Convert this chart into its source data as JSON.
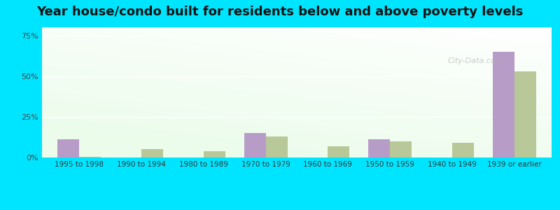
{
  "title": "Year house/condo built for residents below and above poverty levels",
  "categories": [
    "1995 to 1998",
    "1990 to 1994",
    "1980 to 1989",
    "1970 to 1979",
    "1960 to 1969",
    "1950 to 1959",
    "1940 to 1949",
    "1939 or earlier"
  ],
  "below_poverty": [
    11,
    0,
    0,
    15,
    0,
    11,
    0,
    65
  ],
  "above_poverty": [
    0.5,
    5,
    4,
    13,
    7,
    10,
    9,
    53
  ],
  "below_color": "#b89cc8",
  "above_color": "#b8c898",
  "bar_width": 0.35,
  "ylim": [
    0,
    80
  ],
  "yticks": [
    0,
    25,
    50,
    75
  ],
  "ytick_labels": [
    "0%",
    "25%",
    "50%",
    "75%"
  ],
  "outer_bg": "#00e5ff",
  "title_fontsize": 13,
  "watermark": "City-Data.com"
}
